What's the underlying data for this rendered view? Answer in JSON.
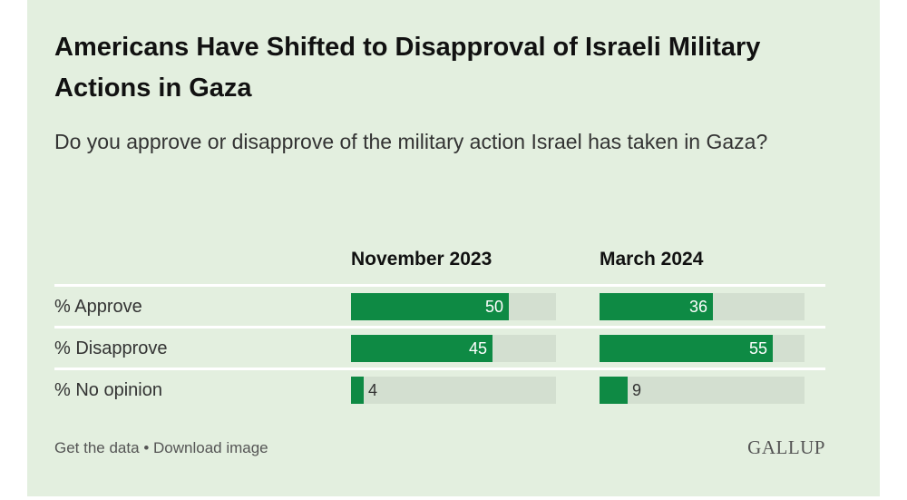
{
  "chart_data": {
    "type": "bar",
    "title": "Americans Have Shifted to Disapproval of Israeli Military Actions in Gaza",
    "subtitle": "Do you approve or disapprove of the military action Israel has taken in Gaza?",
    "categories": [
      "% Approve",
      "% Disapprove",
      "% No opinion"
    ],
    "series": [
      {
        "name": "November 2023",
        "values": [
          50,
          45,
          4
        ]
      },
      {
        "name": "March 2024",
        "values": [
          36,
          55,
          9
        ]
      }
    ],
    "ylim": [
      0,
      65
    ],
    "colors": {
      "bar": "#0e8a44",
      "track": "#d3dfd0",
      "background": "#e3efdf"
    }
  },
  "footer": {
    "get_data": "Get the data",
    "separator": "•",
    "download": "Download image",
    "logo": "GALLUP"
  }
}
